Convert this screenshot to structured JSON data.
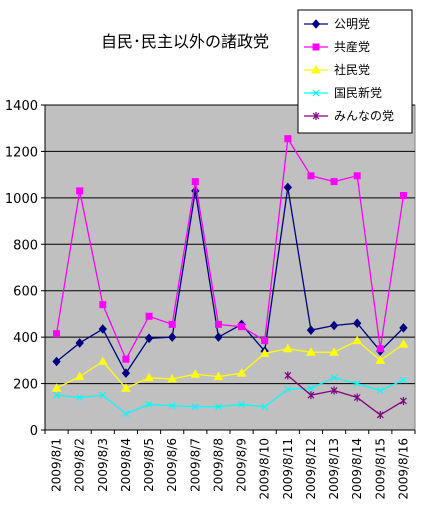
{
  "chart_data": {
    "type": "line",
    "title": "自民･民主以外の諸政党",
    "xlabel": "",
    "ylabel": "",
    "ylim": [
      0,
      1400
    ],
    "yticks": [
      0,
      200,
      400,
      600,
      800,
      1000,
      1200,
      1400
    ],
    "grid": true,
    "legend_position": "top-right",
    "plot_background": "#c0c0c0",
    "categories": [
      "2009/8/1",
      "2009/8/2",
      "2009/8/3",
      "2009/8/4",
      "2009/8/5",
      "2009/8/6",
      "2009/8/7",
      "2009/8/8",
      "2009/8/9",
      "2009/8/10",
      "2009/8/11",
      "2009/8/12",
      "2009/8/13",
      "2009/8/14",
      "2009/8/15",
      "2009/8/16"
    ],
    "series": [
      {
        "name": "公明党",
        "color": "#000080",
        "marker": "diamond",
        "values": [
          295,
          375,
          435,
          245,
          395,
          400,
          1030,
          400,
          455,
          340,
          1045,
          430,
          450,
          460,
          340,
          440
        ]
      },
      {
        "name": "共産党",
        "color": "#ff00ff",
        "marker": "square",
        "values": [
          415,
          1030,
          540,
          305,
          490,
          455,
          1070,
          455,
          445,
          385,
          1255,
          1095,
          1070,
          1095,
          350,
          1010
        ]
      },
      {
        "name": "社民党",
        "color": "#ffff00",
        "marker": "triangle",
        "values": [
          180,
          230,
          295,
          180,
          225,
          220,
          240,
          230,
          245,
          330,
          350,
          335,
          335,
          385,
          300,
          370
        ]
      },
      {
        "name": "国民新党",
        "color": "#00ffff",
        "marker": "x",
        "values": [
          150,
          140,
          150,
          70,
          110,
          105,
          100,
          100,
          110,
          100,
          175,
          180,
          225,
          200,
          170,
          215
        ]
      },
      {
        "name": "みんなの党",
        "color": "#800080",
        "marker": "star",
        "values": [
          null,
          null,
          null,
          null,
          null,
          null,
          null,
          null,
          null,
          null,
          235,
          150,
          170,
          140,
          65,
          125
        ]
      }
    ]
  }
}
